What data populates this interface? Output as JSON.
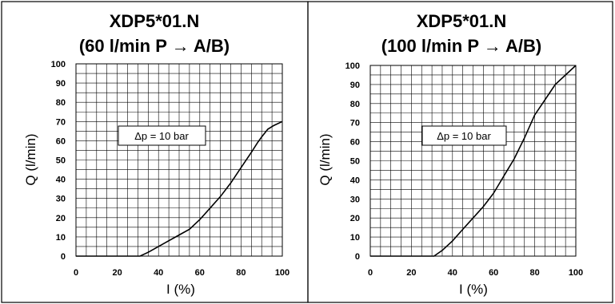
{
  "chart_data": [
    {
      "type": "line",
      "title": [
        "XDP5*01.N",
        "(60 l/min P → A/B)"
      ],
      "xlabel": "I (%)",
      "ylabel": "Q (l/min)",
      "xlim": [
        0,
        100
      ],
      "ylim": [
        0,
        100
      ],
      "x_ticks": [
        0,
        20,
        40,
        60,
        80,
        100
      ],
      "y_ticks": [
        0,
        10,
        20,
        30,
        40,
        50,
        60,
        70,
        80,
        90,
        100
      ],
      "grid": true,
      "annotation": "Δp = 10 bar",
      "series": [
        {
          "x": [
            0,
            31,
            35,
            40,
            45,
            50,
            55,
            60,
            65,
            70,
            75,
            80,
            85,
            88,
            90,
            93,
            96,
            100
          ],
          "y": [
            0,
            0,
            2,
            5,
            8,
            11,
            14,
            19,
            25,
            31,
            38,
            46,
            54,
            59,
            62,
            66,
            68,
            70
          ]
        }
      ]
    },
    {
      "type": "line",
      "title": [
        "XDP5*01.N",
        "(100 l/min P → A/B)"
      ],
      "xlabel": "I (%)",
      "ylabel": "Q (l/min)",
      "xlim": [
        0,
        100
      ],
      "ylim": [
        0,
        100
      ],
      "x_ticks": [
        0,
        20,
        40,
        60,
        80,
        100
      ],
      "y_ticks": [
        0,
        10,
        20,
        30,
        40,
        50,
        60,
        70,
        80,
        90,
        100
      ],
      "grid": true,
      "annotation": "Δp = 10 bar",
      "series": [
        {
          "x": [
            0,
            31,
            35,
            40,
            45,
            50,
            55,
            60,
            65,
            70,
            75,
            80,
            85,
            90,
            95,
            100
          ],
          "y": [
            0,
            0,
            3,
            8,
            14,
            20,
            26,
            33,
            42,
            51,
            62,
            74,
            82,
            90,
            95,
            100
          ]
        }
      ]
    }
  ]
}
